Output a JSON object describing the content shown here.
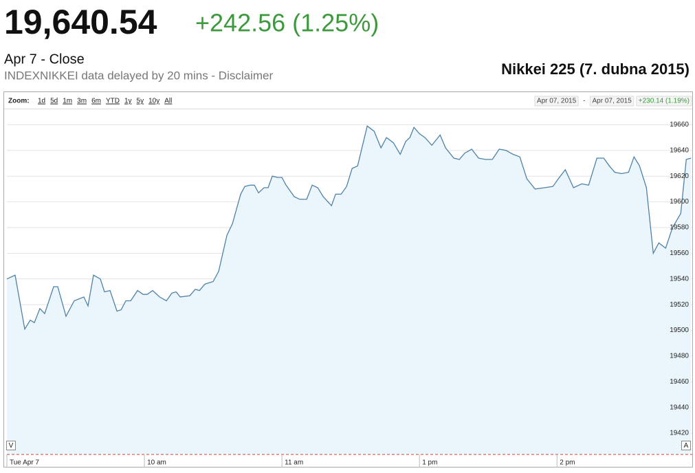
{
  "header": {
    "price": "19,640.54",
    "change": "+242.56 (1.25%)",
    "status": "Apr 7 - Close",
    "disclaimer": "INDEXNIKKEI data delayed by 20 mins - Disclaimer"
  },
  "chart_data": {
    "type": "line",
    "title": "Nikkei 225 (7. dubna 2015)",
    "zoom_label": "Zoom:",
    "zoom_options": [
      "1d",
      "5d",
      "1m",
      "3m",
      "6m",
      "YTD",
      "1y",
      "5y",
      "10y",
      "All"
    ],
    "range_start": "Apr 07, 2015",
    "range_separator": "-",
    "range_end": "Apr 07, 2015",
    "range_change": "+230.14 (1.19%)",
    "scroll_left": "V",
    "scroll_right": "A",
    "x": [
      0,
      3.6,
      7.8,
      10.2,
      12,
      14.4,
      16.5,
      20.4,
      22.2,
      25.8,
      29.4,
      33.6,
      35.4,
      37.8,
      40.8,
      42.6,
      45,
      48,
      49.8,
      51.9,
      54,
      57,
      59.4,
      61.2,
      63.6,
      66.6,
      69.6,
      72,
      73.8,
      75.6,
      79.8,
      82.2,
      84,
      86.4,
      90,
      92.4,
      96,
      98.4,
      102,
      103.8,
      106.2,
      108,
      109.8,
      112.2,
      114,
      115.8,
      118.2,
      120,
      121.8,
      125.4,
      127.8,
      130.8,
      133.2,
      135.6,
      138,
      141.6,
      143.4,
      145.8,
      148.2,
      150.6,
      153,
      157.2,
      160.2,
      163.2,
      165.6,
      168.6,
      171.6,
      174,
      175.8,
      177.6,
      180,
      182.4,
      185.4,
      189,
      191.4,
      195,
      197.4,
      199.8,
      202.8,
      205.8,
      208.8,
      211.8,
      214.8,
      217.8,
      220.8,
      223.8,
      226.8,
      230.4,
      234.6,
      238.2,
      240.6,
      243.6,
      247.2,
      250.8,
      253.8,
      257.4,
      260.4,
      262.8,
      265.2,
      268.2,
      271.2,
      273.6,
      276,
      279,
      282,
      284.4,
      287.4,
      290.4,
      294,
      296.4,
      298.5
    ],
    "series": [
      {
        "color": "#4f81a8",
        "fill": "#eaf5fc",
        "values": [
          19540,
          19543,
          19501,
          19508,
          19506,
          19517,
          19513,
          19534,
          19534,
          19511,
          19523,
          19526,
          19519,
          19543,
          19540,
          19530,
          19531,
          19515,
          19516,
          19523,
          19523,
          19531,
          19528,
          19528,
          19531,
          19526,
          19523,
          19529,
          19530,
          19526,
          19527,
          19532,
          19531,
          19536,
          19538,
          19546,
          19574,
          19583,
          19606,
          19612,
          19613,
          19613,
          19607,
          19611,
          19611,
          19620,
          19619,
          19619,
          19613,
          19604,
          19602,
          19602,
          19613,
          19611,
          19604,
          19597,
          19606,
          19606,
          19612,
          19626,
          19628,
          19659,
          19655,
          19642,
          19650,
          19646,
          19637,
          19647,
          19650,
          19658,
          19653,
          19650,
          19644,
          19652,
          19642,
          19634,
          19633,
          19638,
          19641,
          19634,
          19633,
          19633,
          19641,
          19640,
          19637,
          19635,
          19618,
          19610,
          19611,
          19612,
          19618,
          19625,
          19611,
          19614,
          19613,
          19634,
          19634,
          19628,
          19623,
          19622,
          19623,
          19635,
          19628,
          19611,
          19560,
          19568,
          19564,
          19580,
          19591,
          19633,
          19634
        ]
      }
    ],
    "xlim": [
      0,
      299
    ],
    "xticks": [
      {
        "value": 0,
        "label": "Tue Apr 7"
      },
      {
        "value": 60,
        "label": "10 am"
      },
      {
        "value": 120,
        "label": "11 am"
      },
      {
        "value": 180,
        "label": "1 pm"
      },
      {
        "value": 240,
        "label": "2 pm"
      }
    ],
    "ylim": [
      19404,
      19672
    ],
    "yticks": [
      19420,
      19440,
      19460,
      19480,
      19500,
      19520,
      19540,
      19560,
      19580,
      19600,
      19620,
      19640,
      19660
    ],
    "grid": true
  }
}
